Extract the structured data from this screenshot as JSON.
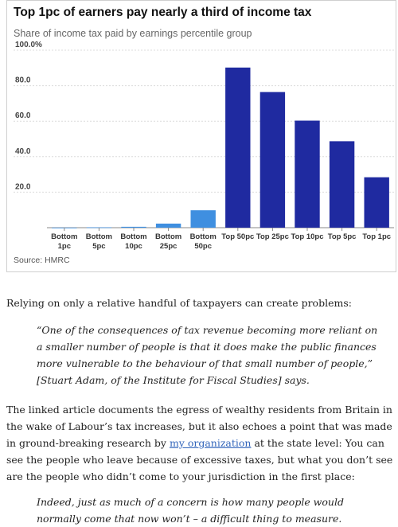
{
  "chart_data": {
    "type": "bar",
    "title": "Top 1pc of earners pay nearly a third of income tax",
    "subtitle": "Share of income tax paid by earnings percentile group",
    "source": "Source: HMRC",
    "categories": [
      [
        "Bottom",
        "1pc"
      ],
      [
        "Bottom",
        "5pc"
      ],
      [
        "Bottom",
        "10pc"
      ],
      [
        "Bottom",
        "25pc"
      ],
      [
        "Bottom",
        "50pc"
      ],
      [
        "Top 50pc"
      ],
      [
        "Top 25pc"
      ],
      [
        "Top 10pc"
      ],
      [
        "Top 5pc"
      ],
      [
        "Top 1pc"
      ]
    ],
    "values": [
      0.05,
      0.2,
      0.5,
      2.3,
      9.8,
      90.2,
      76.4,
      60.3,
      48.7,
      28.4
    ],
    "bar_colors": [
      "#3f8fe0",
      "#3f8fe0",
      "#3f8fe0",
      "#3f8fe0",
      "#3f8fe0",
      "#1f2aa0",
      "#1f2aa0",
      "#1f2aa0",
      "#1f2aa0",
      "#1f2aa0"
    ],
    "y_ticks": [
      "20.0",
      "40.0",
      "60.0",
      "80.0",
      "100.0%"
    ],
    "y_tick_values": [
      20,
      40,
      60,
      80,
      100
    ],
    "ylim": [
      0,
      100
    ],
    "grid": true,
    "legend": "none"
  },
  "article": {
    "p1": "Relying on only a relative handful of taxpayers can create problems:",
    "quote1": "“One of the consequences of tax revenue becoming more reliant on a smaller number of people is that it does make the public finances more vulnerable to the behaviour of that small number of people,” [Stuart Adam, of the Institute for Fiscal Studies] says.",
    "p2_before": "The linked article documents the egress of wealthy residents from Britain in the wake of Labour’s tax increases, but it also echoes a point that was made in ground-breaking research by ",
    "p2_link": "my organization",
    "p2_after": " at the state level: You can see the people who leave because of excessive taxes, but what you don’t see are the people who didn’t come to your jurisdiction in the first place:",
    "quote2": "Indeed, just as much of a concern is how many people would normally come that now won’t – a difficult thing to measure."
  }
}
